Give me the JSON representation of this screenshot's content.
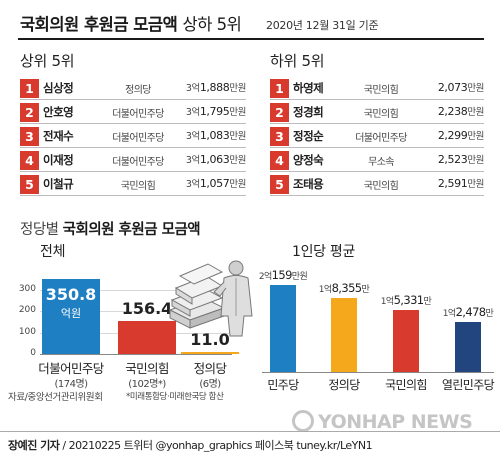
{
  "title": {
    "main": "국회의원 후원금 모금액",
    "sub": "상하 5위",
    "date": "2020년 12월 31일 기준"
  },
  "colors": {
    "rank_red": "#d83a2d",
    "rank_green": "#5a9a3a",
    "bar_blue": "#1f7fc3",
    "bar_red": "#d83a2d",
    "bar_yellow": "#f6a81d",
    "bar_darkblue": "#23457f"
  },
  "top5": {
    "heading": "상위 5위",
    "rows": [
      {
        "rank": "1",
        "name": "심상정",
        "party": "정의당",
        "eok": "3억",
        "amount": "1,888",
        "unit": "만원"
      },
      {
        "rank": "2",
        "name": "안호영",
        "party": "더불어민주당",
        "eok": "3억",
        "amount": "1,795",
        "unit": "만원"
      },
      {
        "rank": "3",
        "name": "전재수",
        "party": "더불어민주당",
        "eok": "3억",
        "amount": "1,083",
        "unit": "만원"
      },
      {
        "rank": "4",
        "name": "이재정",
        "party": "더불어민주당",
        "eok": "3억",
        "amount": "1,063",
        "unit": "만원"
      },
      {
        "rank": "5",
        "name": "이철규",
        "party": "국민의힘",
        "eok": "3억",
        "amount": "1,057",
        "unit": "만원"
      }
    ]
  },
  "bottom5": {
    "heading": "하위 5위",
    "rows": [
      {
        "rank": "1",
        "name": "하영제",
        "party": "국민의힘",
        "eok": "",
        "amount": "2,073",
        "unit": "만원"
      },
      {
        "rank": "2",
        "name": "정경희",
        "party": "국민의힘",
        "eok": "",
        "amount": "2,238",
        "unit": "만원"
      },
      {
        "rank": "3",
        "name": "정정순",
        "party": "더불어민주당",
        "eok": "",
        "amount": "2,299",
        "unit": "만원"
      },
      {
        "rank": "4",
        "name": "양정숙",
        "party": "무소속",
        "eok": "",
        "amount": "2,523",
        "unit": "만원"
      },
      {
        "rank": "5",
        "name": "조태용",
        "party": "국민의힘",
        "eok": "",
        "amount": "2,591",
        "unit": "만원"
      }
    ]
  },
  "party_section_title": {
    "prefix": "정당별",
    "main": "국회의원 후원금 모금액"
  },
  "chart_data": [
    {
      "type": "bar",
      "title": "전체",
      "categories": [
        "더불어민주당",
        "국민의힘",
        "정의당"
      ],
      "category_notes": [
        "(174명)",
        "(102명*)",
        "(6명)"
      ],
      "values": [
        350.8,
        156.4,
        11.0
      ],
      "value_labels": [
        "350.8",
        "156.4",
        "11.0"
      ],
      "value_unit": "억원",
      "yticks": [
        0,
        100,
        200,
        300
      ],
      "ylim": [
        0,
        340
      ],
      "grid": true,
      "colors": [
        "#1f7fc3",
        "#d83a2d",
        "#f6a81d"
      ],
      "note": "*미래통합당·미래한국당 합산"
    },
    {
      "type": "bar",
      "title": "1인당 평균",
      "categories": [
        "민주당",
        "정의당",
        "국민의힘",
        "열린민주당"
      ],
      "values": [
        21590000,
        18355000,
        15331000,
        12478000
      ],
      "value_labels": [
        {
          "eok": "2억",
          "man": "159",
          "unit": "만원"
        },
        {
          "eok": "1억",
          "man": "8,355",
          "unit": "만"
        },
        {
          "eok": "1억",
          "man": "5,331",
          "unit": "만"
        },
        {
          "eok": "1억",
          "man": "2,478",
          "unit": "만"
        }
      ],
      "colors": [
        "#1f7fc3",
        "#f6a81d",
        "#d83a2d",
        "#23457f"
      ]
    }
  ],
  "footer": {
    "source": "자료/중앙선거관리위원회",
    "credit_name": "장예진 기자",
    "credit_rest": " / 20210225 트위터 @yonhap_graphics  페이스북 tuney.kr/LeYN1",
    "watermark": "YONHAP NEWS"
  }
}
